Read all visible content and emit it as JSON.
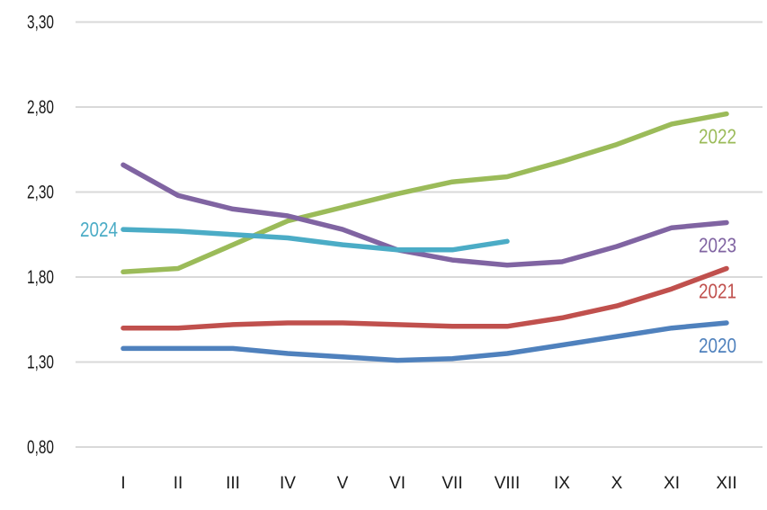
{
  "chart_data": {
    "type": "line",
    "x_tick_labels": [
      "I",
      "II",
      "III",
      "IV",
      "V",
      "VI",
      "VII",
      "VIII",
      "IX",
      "X",
      "XI",
      "XII"
    ],
    "y_tick_labels": [
      "0,80",
      "1,30",
      "1,80",
      "2,30",
      "2,80",
      "3,30"
    ],
    "ylim": [
      0.8,
      3.3
    ],
    "y_step": 0.5,
    "grid": "horizontal-only",
    "legend_position": "inline-series-labels",
    "decimal_separator": ",",
    "series": [
      {
        "name": "2020",
        "color": "#4F81BD",
        "values": [
          1.38,
          1.38,
          1.38,
          1.35,
          1.33,
          1.31,
          1.32,
          1.35,
          1.4,
          1.45,
          1.5,
          1.53
        ]
      },
      {
        "name": "2021",
        "color": "#C0504D",
        "values": [
          1.5,
          1.5,
          1.52,
          1.53,
          1.53,
          1.52,
          1.51,
          1.51,
          1.56,
          1.63,
          1.73,
          1.85
        ]
      },
      {
        "name": "2022",
        "color": "#9BBB59",
        "values": [
          1.83,
          1.85,
          1.99,
          2.13,
          2.21,
          2.29,
          2.36,
          2.39,
          2.48,
          2.58,
          2.7,
          2.76
        ]
      },
      {
        "name": "2023",
        "color": "#8064A2",
        "values": [
          2.46,
          2.28,
          2.2,
          2.16,
          2.08,
          1.96,
          1.9,
          1.87,
          1.89,
          1.98,
          2.09,
          2.12
        ]
      },
      {
        "name": "2024",
        "color": "#4BACC6",
        "values": [
          2.08,
          2.07,
          2.05,
          2.03,
          1.99,
          1.96,
          1.96,
          2.01,
          null,
          null,
          null,
          null
        ]
      }
    ],
    "colors": {
      "gridline": "#d9d9d9",
      "tick_text": "#1a1a1a",
      "background": "#ffffff"
    }
  }
}
